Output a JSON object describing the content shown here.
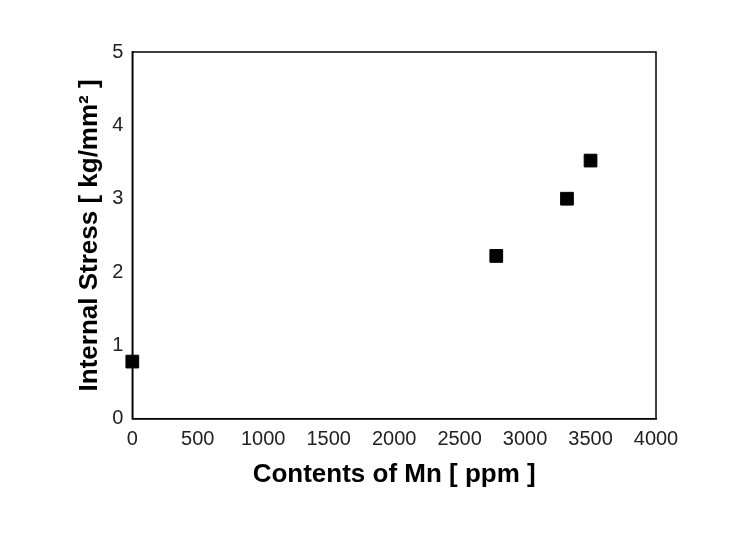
{
  "chart_data": {
    "type": "scatter",
    "x_label": "Contents of Mn [ ppm ]",
    "y_label": "Internal Stress [ kg/mm² ]",
    "x": [
      0,
      2780,
      3320,
      3500
    ],
    "values": [
      0.78,
      2.22,
      3.0,
      3.52
    ],
    "color": "#000000",
    "marker": "square",
    "xlim": [
      0,
      4000
    ],
    "xticks": [
      0,
      500,
      1000,
      1500,
      2000,
      2500,
      3000,
      3500,
      4000
    ],
    "ylim": [
      0,
      5
    ],
    "yticks": [
      0,
      1,
      2,
      3,
      4,
      5
    ],
    "grid": false
  }
}
